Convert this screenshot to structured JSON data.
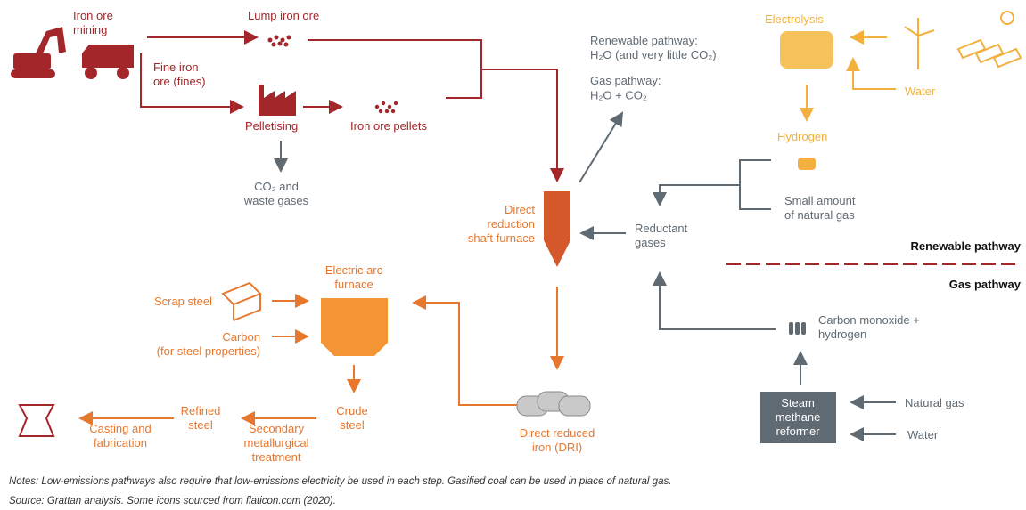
{
  "nodes": {
    "mining": [
      "Iron ore",
      "mining"
    ],
    "lump": [
      "Lump iron ore"
    ],
    "fines": [
      "Fine iron",
      "ore (fines)"
    ],
    "pelletising": [
      "Pelletising"
    ],
    "pellets": [
      "Iron ore pellets"
    ],
    "co2": [
      "CO₂ and",
      "waste gases"
    ],
    "exhaust": [
      "Renewable pathway:",
      "H₂O (and very little CO₂)",
      "Gas pathway:",
      "H₂O + CO₂"
    ],
    "electrolysis": [
      "Electrolysis"
    ],
    "water_top": [
      "Water"
    ],
    "hydrogen": [
      "Hydrogen"
    ],
    "small_gas": [
      "Small amount",
      "of natural gas"
    ],
    "reductant": [
      "Reductant",
      "gases"
    ],
    "shaft": [
      "Direct",
      "reduction",
      "shaft furnace"
    ],
    "renewable_label": [
      "Renewable pathway"
    ],
    "gas_label": [
      "Gas pathway"
    ],
    "eaf": [
      "Electric arc",
      "furnace"
    ],
    "scrap": [
      "Scrap steel"
    ],
    "carbon": [
      "Carbon",
      "(for steel properties)"
    ],
    "co_h2": [
      "Carbon monoxide +",
      "hydrogen"
    ],
    "crude": [
      "Crude",
      "steel"
    ],
    "refined": [
      "Refined",
      "steel"
    ],
    "secondary": [
      "Secondary",
      "metallurgical",
      "treatment"
    ],
    "casting": [
      "Casting and",
      "fabrication"
    ],
    "dri": [
      "Direct reduced",
      "iron (DRI)"
    ],
    "smr": [
      "Steam",
      "methane",
      "reformer"
    ],
    "natural_gas": [
      "Natural gas"
    ],
    "water_bottom": [
      "Water"
    ]
  },
  "notes": "Notes: Low-emissions pathways also require that low-emissions electricity be used in each step. Gasified coal can be used in place of natural gas.",
  "source": "Source: Grattan analysis. Some icons sourced from flaticon.com (2020)."
}
